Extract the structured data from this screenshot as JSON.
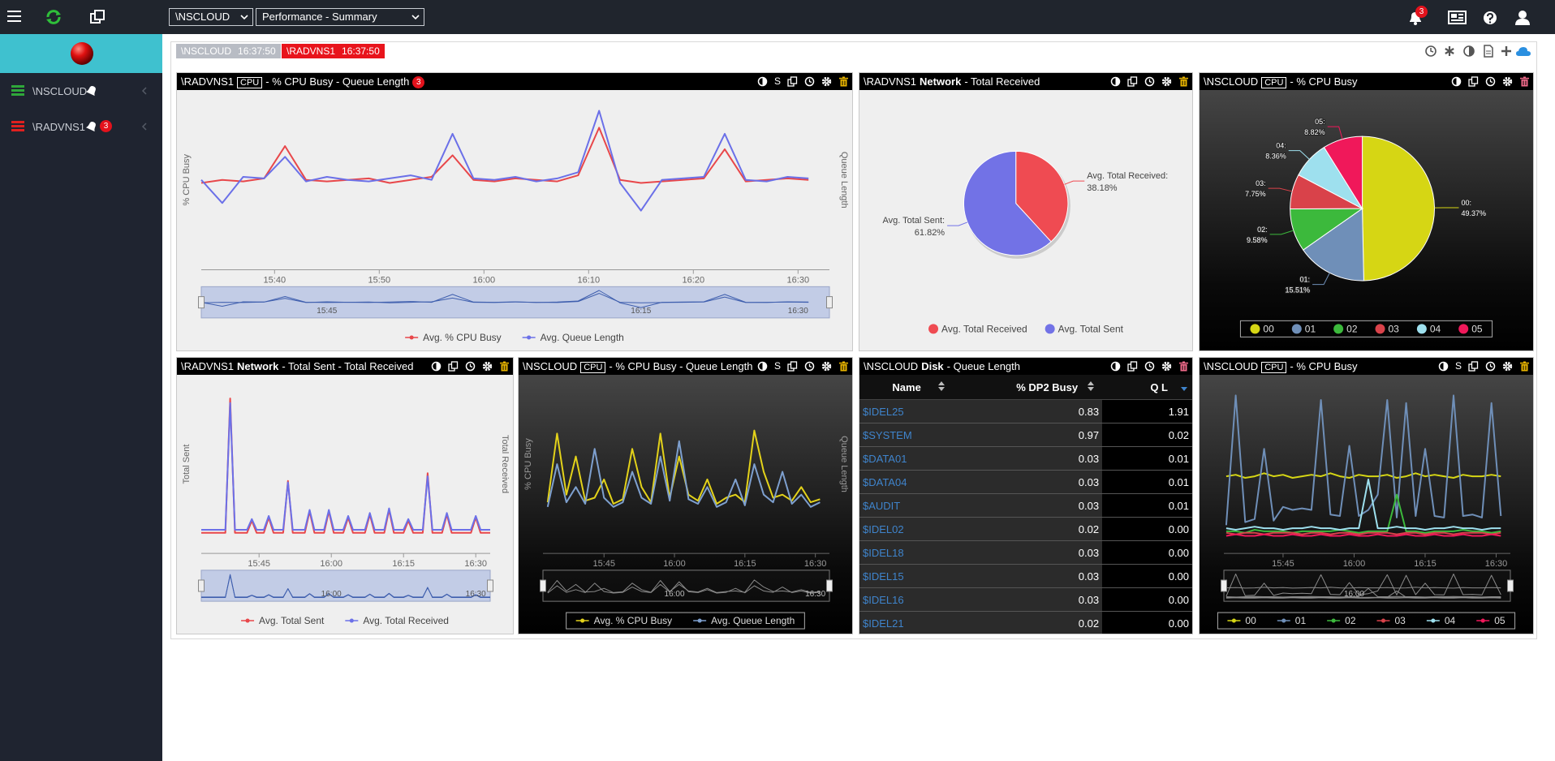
{
  "topbar": {
    "host_select": "\\NSCLOUD",
    "view_select": "Performance - Summary",
    "notification_count": "3"
  },
  "sidebar": {
    "items": [
      {
        "label": "\\NSCLOUD"
      },
      {
        "label": "\\RADVNS1",
        "badge": "3"
      }
    ]
  },
  "status_tags": [
    {
      "host": "\\NSCLOUD",
      "time": "16:37:50"
    },
    {
      "host": "\\RADVNS1",
      "time": "16:37:50"
    }
  ],
  "panels": [
    {
      "header": {
        "host": "\\RADVNS1",
        "tag": "CPU",
        "title": "- % CPU Busy - Queue Length",
        "badge": "3",
        "scale_toggle": "S"
      },
      "chart_data": {
        "type": "line",
        "theme": "light",
        "y_label": "% CPU Busy",
        "y2_label": "Queue Length",
        "x": [
          933,
          935,
          937,
          939,
          941,
          943,
          945,
          947,
          949,
          951,
          953,
          955,
          957,
          959,
          961,
          963,
          965,
          967,
          969,
          971,
          973,
          975,
          977,
          979,
          981,
          983,
          985,
          987,
          989,
          991
        ],
        "xlim": [
          933,
          993
        ],
        "xticks": [
          {
            "value": 940,
            "label": "15:40"
          },
          {
            "value": 950,
            "label": "15:50"
          },
          {
            "value": 960,
            "label": "16:00"
          },
          {
            "value": 970,
            "label": "16:10"
          },
          {
            "value": 980,
            "label": "16:20"
          },
          {
            "value": 990,
            "label": "16:30"
          }
        ],
        "navigator_ticks": [
          {
            "value": 945,
            "label": "15:45"
          },
          {
            "value": 975,
            "label": "16:15"
          },
          {
            "value": 990,
            "label": "16:30"
          }
        ],
        "ylim": [
          0,
          100
        ],
        "y2lim": [
          0,
          100
        ],
        "series": [
          {
            "name": "Avg. % CPU Busy",
            "color": "#e8474a",
            "values": [
              48,
              50,
              49,
              51,
              72,
              50,
              49,
              50,
              51,
              48,
              50,
              52,
              66,
              50,
              49,
              51,
              50,
              49,
              53,
              84,
              50,
              48,
              49,
              50,
              51,
              70,
              49,
              50,
              51,
              50
            ]
          },
          {
            "name": "Avg. Queue Length",
            "color": "#6b70e8",
            "axis": "y2",
            "values": [
              50,
              35,
              52,
              51,
              65,
              49,
              52,
              50,
              49,
              51,
              53,
              50,
              80,
              51,
              50,
              52,
              49,
              51,
              55,
              95,
              48,
              30,
              50,
              51,
              52,
              80,
              50,
              49,
              52,
              51
            ]
          }
        ]
      }
    },
    {
      "header": {
        "host": "\\RADVNS1",
        "category": "Network",
        "title": "- Total Received"
      },
      "chart_data": {
        "type": "pie",
        "theme": "light",
        "categories": [
          "Avg. Total Received",
          "Avg. Total Sent"
        ],
        "callouts": [
          "Avg. Total Received:",
          "Avg. Total Sent:"
        ],
        "values": [
          38.18,
          61.82
        ],
        "value_labels": [
          "38.18%",
          "61.82%"
        ],
        "colors": [
          "#ef4b52",
          "#7272e6"
        ]
      }
    },
    {
      "header": {
        "host": "\\NSCLOUD",
        "tag": "CPU",
        "title": "- % CPU Busy"
      },
      "chart_data": {
        "type": "pie",
        "theme": "dark",
        "categories": [
          "00",
          "01",
          "02",
          "03",
          "04",
          "05"
        ],
        "callouts": [
          "00:",
          "01:",
          "02:",
          "03:",
          "04:",
          "05:"
        ],
        "values": [
          49.37,
          15.51,
          9.58,
          7.75,
          8.36,
          8.82
        ],
        "value_labels": [
          "49.37%",
          "15.51%",
          "9.58%",
          "7.75%",
          "8.36%",
          "8.82%"
        ],
        "colors": [
          "#d6d614",
          "#6f8fb8",
          "#3cb93c",
          "#d9424a",
          "#9ee0ee",
          "#f0185a"
        ]
      }
    },
    {
      "header": {
        "host": "\\RADVNS1",
        "category": "Network",
        "title": "- Total Sent - Total Received"
      },
      "chart_data": {
        "type": "line",
        "theme": "light",
        "y_label": "Total Sent",
        "y2_label": "Total Received",
        "x": [
          933,
          938,
          939,
          940,
          942.5,
          943.5,
          944.5,
          946,
          947,
          948,
          950,
          951,
          952,
          954.5,
          955.5,
          956.5,
          958.5,
          959.5,
          960.5,
          962.5,
          963.5,
          964.5,
          967,
          968,
          969,
          971,
          972,
          973,
          975,
          976,
          977,
          979,
          980,
          981,
          983,
          984,
          985,
          989,
          990,
          991,
          993
        ],
        "xlim": [
          933,
          993
        ],
        "xticks": [
          {
            "value": 945,
            "label": "15:45"
          },
          {
            "value": 960,
            "label": "16:00"
          },
          {
            "value": 975,
            "label": "16:15"
          },
          {
            "value": 990,
            "label": "16:30"
          }
        ],
        "navigator_ticks": [
          {
            "value": 960,
            "label": "16:00"
          },
          {
            "value": 990,
            "label": "16:30"
          }
        ],
        "ylim": [
          0,
          100
        ],
        "y2lim": [
          0,
          100
        ],
        "series": [
          {
            "name": "Avg. Total Sent",
            "color": "#e8474a",
            "values": [
              5,
              5,
              93,
              5,
              5,
              13,
              5,
              5,
              15,
              5,
              5,
              39,
              5,
              5,
              19,
              5,
              5,
              19,
              5,
              5,
              15,
              5,
              5,
              17,
              5,
              5,
              20,
              5,
              5,
              13,
              5,
              5,
              44,
              5,
              5,
              17,
              5,
              5,
              15,
              5,
              5
            ]
          },
          {
            "name": "Avg. Total Received",
            "color": "#6b70e8",
            "axis": "y2",
            "values": [
              7,
              7,
              90,
              7,
              7,
              14,
              7,
              7,
              16,
              7,
              7,
              38,
              7,
              7,
              20,
              7,
              7,
              20,
              7,
              7,
              16,
              7,
              7,
              18,
              7,
              7,
              21,
              7,
              7,
              14,
              7,
              7,
              42,
              7,
              7,
              18,
              7,
              7,
              16,
              7,
              7
            ]
          }
        ]
      }
    },
    {
      "header": {
        "host": "\\NSCLOUD",
        "tag": "CPU",
        "title": "- % CPU Busy - Queue Length",
        "scale_toggle": "S"
      },
      "chart_data": {
        "type": "line",
        "theme": "dark",
        "y_label": "% CPU Busy",
        "y2_label": "Queue Length",
        "x": [
          933,
          935,
          937,
          939,
          941,
          943,
          945,
          947,
          949,
          951,
          953,
          955,
          957,
          959,
          961,
          963,
          965,
          967,
          969,
          971,
          973,
          975,
          977,
          979,
          981,
          983,
          985,
          987,
          989,
          991
        ],
        "xlim": [
          932,
          993
        ],
        "xticks": [
          {
            "value": 945,
            "label": "15:45"
          },
          {
            "value": 960,
            "label": "16:00"
          },
          {
            "value": 975,
            "label": "16:15"
          },
          {
            "value": 990,
            "label": "16:30"
          }
        ],
        "navigator_ticks": [
          {
            "value": 960,
            "label": "16:00"
          },
          {
            "value": 990,
            "label": "16:30"
          }
        ],
        "ylim": [
          0,
          100
        ],
        "y2lim": [
          0,
          100
        ],
        "series": [
          {
            "name": "Avg. % CPU Busy",
            "color": "#e3d21a",
            "values": [
              25,
              70,
              30,
              55,
              26,
              28,
              40,
              24,
              27,
              60,
              35,
              25,
              70,
              28,
              55,
              30,
              26,
              40,
              24,
              28,
              30,
              25,
              72,
              45,
              28,
              30,
              26,
              35,
              25,
              27
            ]
          },
          {
            "name": "Avg. Queue Length",
            "color": "#7ea0cf",
            "axis": "y2",
            "values": [
              22,
              50,
              25,
              35,
              24,
              60,
              28,
              22,
              25,
              45,
              28,
              24,
              55,
              26,
              65,
              27,
              24,
              35,
              22,
              25,
              40,
              23,
              50,
              30,
              25,
              45,
              24,
              30,
              22,
              25
            ]
          }
        ]
      }
    },
    {
      "header": {
        "host": "\\NSCLOUD",
        "category": "Disk",
        "title": "- Queue Length"
      },
      "table": {
        "columns": [
          "Name",
          "% DP2 Busy",
          "Q L"
        ],
        "rows": [
          [
            "$IDEL25",
            "0.83",
            "1.91"
          ],
          [
            "$SYSTEM",
            "0.97",
            "0.02"
          ],
          [
            "$DATA01",
            "0.03",
            "0.01"
          ],
          [
            "$DATA04",
            "0.03",
            "0.01"
          ],
          [
            "$AUDIT",
            "0.03",
            "0.01"
          ],
          [
            "$IDEL02",
            "0.02",
            "0.00"
          ],
          [
            "$IDEL18",
            "0.03",
            "0.00"
          ],
          [
            "$IDEL15",
            "0.03",
            "0.00"
          ],
          [
            "$IDEL16",
            "0.03",
            "0.00"
          ],
          [
            "$IDEL21",
            "0.02",
            "0.00"
          ]
        ]
      }
    },
    {
      "header": {
        "host": "\\NSCLOUD",
        "tag": "CPU",
        "title": "- % CPU Busy",
        "scale_toggle": "S"
      },
      "chart_data": {
        "type": "line",
        "theme": "dark",
        "x": [
          933,
          935,
          937,
          939,
          941,
          943,
          945,
          947,
          949,
          951,
          953,
          955,
          957,
          959,
          961,
          963,
          965,
          967,
          969,
          971,
          973,
          975,
          977,
          979,
          981,
          983,
          985,
          987,
          989,
          991
        ],
        "xlim": [
          932.5,
          993
        ],
        "xticks": [
          {
            "value": 945,
            "label": "15:45"
          },
          {
            "value": 960,
            "label": "16:00"
          },
          {
            "value": 975,
            "label": "16:15"
          },
          {
            "value": 990,
            "label": "16:30"
          }
        ],
        "navigator_ticks": [
          {
            "value": 960,
            "label": "16:00"
          }
        ],
        "ylim": [
          0,
          100
        ],
        "series": [
          {
            "name": "00",
            "color": "#d6d614",
            "values": [
              42,
              43,
              41,
              42,
              44,
              42,
              43,
              41,
              42,
              43,
              42,
              44,
              42,
              41,
              43,
              42,
              42,
              43,
              41,
              42,
              44,
              42,
              43,
              42,
              41,
              43,
              42,
              42,
              43,
              42
            ]
          },
          {
            "name": "01",
            "color": "#6f8fb8",
            "values": [
              10,
              95,
              12,
              14,
              60,
              13,
              22,
              20,
              21,
              20,
              92,
              17,
              16,
              62,
              16,
              20,
              30,
              92,
              15,
              90,
              16,
              60,
              16,
              15,
              95,
              16,
              17,
              15,
              90,
              16
            ]
          },
          {
            "name": "02",
            "color": "#3cb93c",
            "values": [
              6,
              6,
              5,
              7,
              6,
              6,
              6,
              5,
              6,
              6,
              6,
              6,
              7,
              6,
              5,
              6,
              6,
              6,
              30,
              6,
              6,
              5,
              6,
              6,
              6,
              7,
              6,
              6,
              5,
              6
            ]
          },
          {
            "name": "03",
            "color": "#d9424a",
            "values": [
              5,
              4,
              5,
              5,
              4,
              5,
              5,
              5,
              4,
              5,
              5,
              4,
              5,
              5,
              4,
              5,
              5,
              5,
              4,
              5,
              5,
              4,
              5,
              5,
              4,
              5,
              5,
              5,
              4,
              5
            ]
          },
          {
            "name": "04",
            "color": "#9ee0ee",
            "values": [
              8,
              7,
              8,
              9,
              8,
              8,
              7,
              8,
              8,
              9,
              8,
              8,
              7,
              8,
              8,
              40,
              8,
              8,
              9,
              8,
              8,
              7,
              8,
              8,
              9,
              8,
              8,
              7,
              8,
              8
            ]
          },
          {
            "name": "05",
            "color": "#f0185a",
            "values": [
              3,
              4,
              3,
              3,
              4,
              3,
              3,
              4,
              3,
              3,
              4,
              3,
              3,
              4,
              3,
              3,
              4,
              3,
              3,
              4,
              3,
              3,
              4,
              3,
              3,
              4,
              3,
              3,
              4,
              3
            ]
          }
        ]
      }
    }
  ]
}
